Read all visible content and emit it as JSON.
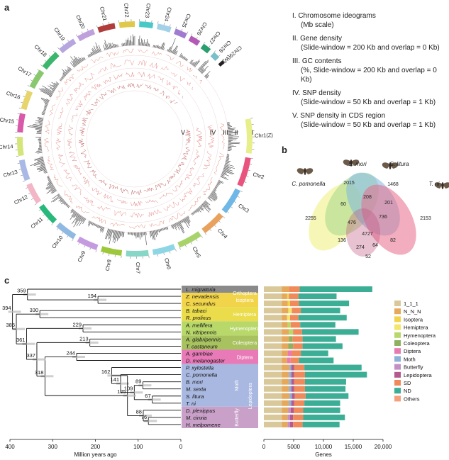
{
  "panels": {
    "a": "a",
    "b": "b",
    "c": "c"
  },
  "circos": {
    "chromosomes": [
      "Chr1(Z)",
      "Chr2",
      "Chr3",
      "Chr4",
      "Chr5",
      "Chr6",
      "Chr7",
      "Chr8",
      "Chr9",
      "Chr10",
      "Chr11",
      "Chr12",
      "Chr13",
      "Chr14",
      "Chr15",
      "Chr16",
      "Chr17",
      "Chr18",
      "Chr19",
      "Chr20",
      "Chr21",
      "Chr22",
      "Chr23",
      "Chr24",
      "Chr25",
      "Chr26",
      "Chr27",
      "Chr28",
      "Chr29(W)"
    ],
    "chrom_colors": [
      "#e7ef8a",
      "#e8547e",
      "#6fb7e6",
      "#e9a15e",
      "#a8d36b",
      "#8ed6e6",
      "#87d6c6",
      "#9ec83c",
      "#c49be0",
      "#8fb9e2",
      "#28b87a",
      "#f3b6c7",
      "#aab8e6",
      "#d4e57a",
      "#d85aa8",
      "#e7d46a",
      "#89c86f",
      "#3cb66d",
      "#b6a6e0",
      "#c0a0dc",
      "#b03c3c",
      "#e0c84a",
      "#49c8c8",
      "#a3d2e8",
      "#a07bd0",
      "#b25ab4",
      "#2a9e6e",
      "#7ac0c8",
      "#222222"
    ],
    "track_labels": [
      "V",
      "IV",
      "III",
      "II",
      "I"
    ]
  },
  "legend_a": [
    {
      "title": "I. Chromosome ideograms",
      "sub": "(Mb scale)"
    },
    {
      "title": "II. Gene density",
      "sub": "(Slide-window = 200 Kb and overlap = 0 Kb)"
    },
    {
      "title": "III. GC contents",
      "sub": "(%, Slide-window = 200 Kb and overlap = 0 Kb)"
    },
    {
      "title": "IV. SNP density",
      "sub": "(Slide-window = 50 Kb and overlap = 1 Kb)"
    },
    {
      "title": "V. SNP density in CDS region",
      "sub": "(Slide-window = 50 Kb and overlap = 1 Kb)"
    }
  ],
  "venn": {
    "species": [
      "C. pomonella",
      "B. mori",
      "S. litura",
      "T. ni"
    ],
    "numbers": [
      "2255",
      "2015",
      "1468",
      "2153",
      "60",
      "208",
      "201",
      "476",
      "736",
      "4727",
      "136",
      "274",
      "64",
      "82",
      "52"
    ]
  },
  "tree": {
    "species": [
      "L. migratoria",
      "Z. nevadensis",
      "C. secundus",
      "B. tabaci",
      "R. prolixus",
      "A. mellifera",
      "N. vitripennis",
      "A. glabripennis",
      "T. castaneum",
      "A. gambiae",
      "D. melanogaster",
      "P. xylostella",
      "C. pomonella",
      "B. mori",
      "M. sexta",
      "S. litura",
      "T. ni",
      "D. plexippus",
      "M. cinxia",
      "H. melpomene"
    ],
    "node_ages": [
      "359",
      "194",
      "394",
      "330",
      "229",
      "385",
      "213",
      "361",
      "337",
      "244",
      "318",
      "162",
      "89",
      "141",
      "109",
      "67",
      "125",
      "88",
      "76"
    ],
    "orders": [
      "Orthoptera",
      "Isoptera",
      "Hemiptera",
      "Hymenoptera",
      "Coleoptera",
      "Diptera",
      "Moth",
      "Butterfly",
      "Lepidoptera"
    ],
    "axis_ticks": [
      "400",
      "300",
      "200",
      "100",
      "0"
    ],
    "axis_label": "Million years ago"
  },
  "chart_data": {
    "type": "bar",
    "categories": [
      "L. migratoria",
      "Z. nevadensis",
      "C. secundus",
      "B. tabaci",
      "R. prolixus",
      "A. mellifera",
      "N. vitripennis",
      "A. glabripennis",
      "T. castaneum",
      "A. gambiae",
      "D. melanogaster",
      "P. xylostella",
      "C. pomonella",
      "B. mori",
      "M. sexta",
      "S. litura",
      "T. ni",
      "D. plexippus",
      "M. cinxia",
      "H. melpomene"
    ],
    "series": [
      {
        "name": "1_1_1",
        "color": "#d9c89a",
        "values": [
          3000,
          3000,
          3000,
          3000,
          3000,
          3000,
          3000,
          3000,
          3000,
          3000,
          3000,
          3000,
          3000,
          3000,
          3000,
          3000,
          3000,
          3000,
          3000,
          3000
        ]
      },
      {
        "name": "N_N_N",
        "color": "#e6a85a",
        "values": [
          1200,
          900,
          1000,
          1100,
          900,
          1000,
          1200,
          1200,
          1100,
          1000,
          900,
          1300,
          1200,
          1200,
          1200,
          1300,
          1200,
          1100,
          1000,
          1000
        ]
      },
      {
        "name": "Isoptera",
        "color": "#f2d44a",
        "values": [
          0,
          300,
          400,
          0,
          0,
          0,
          0,
          0,
          0,
          0,
          0,
          0,
          0,
          0,
          0,
          0,
          0,
          0,
          0,
          0
        ]
      },
      {
        "name": "Hemiptera",
        "color": "#f2e76a",
        "values": [
          0,
          0,
          0,
          600,
          500,
          0,
          0,
          0,
          0,
          0,
          0,
          0,
          0,
          0,
          0,
          0,
          0,
          0,
          0,
          0
        ]
      },
      {
        "name": "Hymenoptera",
        "color": "#b8d86a",
        "values": [
          0,
          0,
          0,
          0,
          0,
          500,
          700,
          0,
          0,
          0,
          0,
          0,
          0,
          0,
          0,
          0,
          0,
          0,
          0,
          0
        ]
      },
      {
        "name": "Coleoptera",
        "color": "#8fb060",
        "values": [
          0,
          0,
          0,
          0,
          0,
          0,
          0,
          600,
          800,
          0,
          0,
          0,
          0,
          0,
          0,
          0,
          0,
          0,
          0,
          0
        ]
      },
      {
        "name": "Diptera",
        "color": "#e87ab0",
        "values": [
          0,
          0,
          0,
          0,
          0,
          0,
          0,
          0,
          0,
          700,
          600,
          0,
          0,
          0,
          0,
          0,
          0,
          0,
          0,
          0
        ]
      },
      {
        "name": "Moth",
        "color": "#8fb0d8",
        "values": [
          0,
          0,
          0,
          0,
          0,
          0,
          0,
          0,
          0,
          0,
          0,
          300,
          400,
          400,
          400,
          400,
          400,
          0,
          0,
          0
        ]
      },
      {
        "name": "Butterfly",
        "color": "#c48fc4",
        "values": [
          0,
          0,
          0,
          0,
          0,
          0,
          0,
          0,
          0,
          0,
          0,
          0,
          0,
          0,
          0,
          0,
          0,
          400,
          400,
          400
        ]
      },
      {
        "name": "Lepidoptera",
        "color": "#b45a8c",
        "values": [
          0,
          0,
          0,
          0,
          0,
          0,
          0,
          0,
          0,
          0,
          0,
          500,
          500,
          500,
          500,
          500,
          500,
          500,
          500,
          500
        ]
      },
      {
        "name": "SD",
        "color": "#f08a5a",
        "values": [
          1800,
          1600,
          1500,
          1500,
          1400,
          1600,
          1500,
          1700,
          1600,
          1500,
          1400,
          1700,
          1800,
          1800,
          1800,
          1800,
          1700,
          1600,
          1700,
          1600
        ]
      },
      {
        "name": "ND",
        "color": "#3cae96",
        "values": [
          12200,
          6400,
          8400,
          6600,
          8100,
          5900,
          9500,
          5600,
          6700,
          4600,
          5800,
          9600,
          10400,
          6900,
          6800,
          7200,
          6000,
          6200,
          7000,
          6200
        ]
      },
      {
        "name": "Others",
        "color": "#f5a07a",
        "values": [
          0,
          0,
          0,
          0,
          0,
          0,
          0,
          0,
          0,
          0,
          0,
          0,
          0,
          0,
          0,
          0,
          0,
          0,
          0,
          0
        ]
      }
    ],
    "x_ticks": [
      "0",
      "5000",
      "10,000",
      "15,000",
      "20,000"
    ],
    "xlim": [
      0,
      20000
    ],
    "xlabel": "Genes",
    "legend": [
      "1_1_1",
      "N_N_N",
      "Isoptera",
      "Hemiptera",
      "Hymenoptera",
      "Coleoptera",
      "Diptera",
      "Moth",
      "Butterfly",
      "Lepidoptera",
      "SD",
      "ND",
      "Others"
    ]
  }
}
